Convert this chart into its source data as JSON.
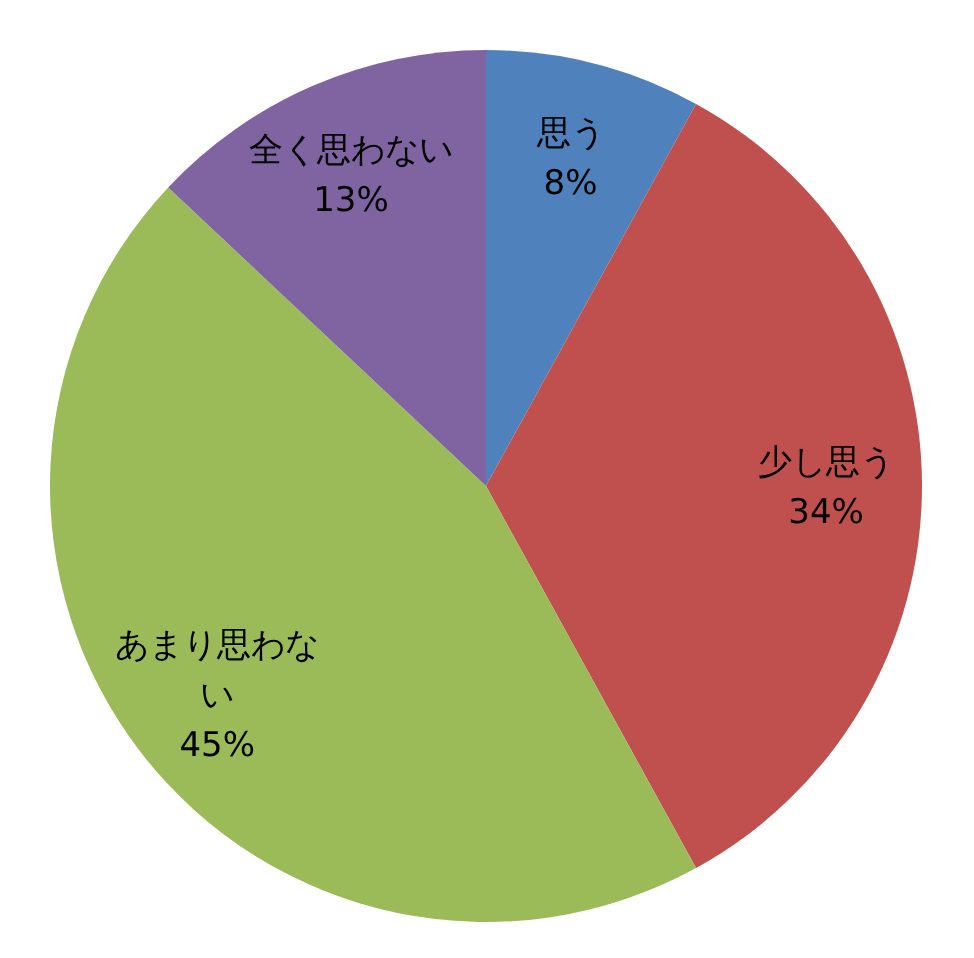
{
  "chart_data": {
    "type": "pie",
    "categories": [
      "思う",
      "少し思う",
      "あまり思わない",
      "全く思わない"
    ],
    "values": [
      8,
      34,
      45,
      13
    ],
    "colors": [
      "#4f81bd",
      "#c0504d",
      "#9bbb59",
      "#8064a2"
    ],
    "value_labels": [
      "8%",
      "34%",
      "45%",
      "13%"
    ]
  }
}
